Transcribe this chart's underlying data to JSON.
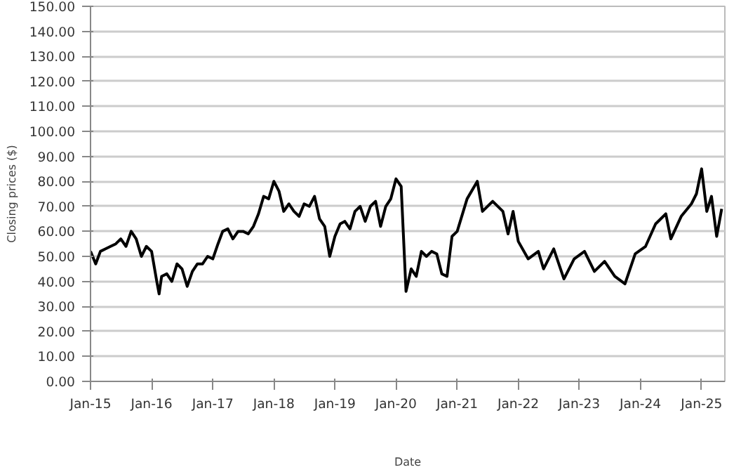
{
  "chart_data": {
    "type": "line",
    "xlabel": "Date",
    "ylabel": "Closing prices ($)",
    "x": [
      "2015-01",
      "2015-02",
      "2015-03",
      "2015-04",
      "2015-05",
      "2015-06",
      "2015-07",
      "2015-08",
      "2015-09",
      "2015-10",
      "2015-11",
      "2015-12",
      "2016-01",
      "2016-02",
      "2016-02-15",
      "2016-03",
      "2016-04",
      "2016-05",
      "2016-06",
      "2016-07",
      "2016-08",
      "2016-09",
      "2016-10",
      "2016-11",
      "2016-12",
      "2017-01",
      "2017-02",
      "2017-03",
      "2017-04",
      "2017-05",
      "2017-06",
      "2017-07",
      "2017-08",
      "2017-09",
      "2017-10",
      "2017-11",
      "2017-12",
      "2018-01",
      "2018-02",
      "2018-03",
      "2018-04",
      "2018-05",
      "2018-06",
      "2018-07",
      "2018-08",
      "2018-09",
      "2018-10",
      "2018-11",
      "2018-12",
      "2019-01",
      "2019-02",
      "2019-03",
      "2019-04",
      "2019-05",
      "2019-06",
      "2019-07",
      "2019-08",
      "2019-09",
      "2019-10",
      "2019-11",
      "2019-12",
      "2020-01",
      "2020-02",
      "2020-03",
      "2020-04",
      "2020-05",
      "2020-06",
      "2020-07",
      "2020-08",
      "2020-09",
      "2020-10",
      "2020-11",
      "2020-12",
      "2021-01",
      "2021-03",
      "2021-05",
      "2021-06",
      "2021-08",
      "2021-10",
      "2021-11",
      "2021-12",
      "2022-01",
      "2022-03",
      "2022-05",
      "2022-06",
      "2022-08",
      "2022-10",
      "2022-12",
      "2023-02",
      "2023-04",
      "2023-06",
      "2023-08",
      "2023-10",
      "2023-12",
      "2024-02",
      "2024-04",
      "2024-06",
      "2024-07",
      "2024-09",
      "2024-11",
      "2024-12",
      "2025-01",
      "2025-02",
      "2025-03",
      "2025-04",
      "2025-05"
    ],
    "series": [
      {
        "color": "#000000",
        "values": [
          52,
          47,
          52,
          53,
          54,
          55,
          57,
          54,
          60,
          57,
          50,
          54,
          52,
          40,
          35,
          42,
          43,
          40,
          47,
          45,
          38,
          44,
          47,
          47,
          50,
          49,
          55,
          60,
          61,
          57,
          60,
          60,
          59,
          62,
          67,
          74,
          73,
          80,
          76,
          68,
          71,
          68,
          66,
          71,
          70,
          74,
          65,
          62,
          50,
          58,
          63,
          64,
          61,
          68,
          70,
          64,
          70,
          72,
          62,
          70,
          73,
          81,
          78,
          36,
          45,
          42,
          52,
          50,
          52,
          51,
          43,
          42,
          58,
          60,
          73,
          80,
          68,
          72,
          68,
          59,
          68,
          56,
          49,
          52,
          45,
          53,
          41,
          49,
          52,
          44,
          48,
          42,
          39,
          51,
          54,
          63,
          67,
          57,
          66,
          71,
          75,
          85,
          68,
          74,
          58,
          69
        ]
      }
    ],
    "xlim": [
      "2015-01-01",
      "2025-05-20"
    ],
    "xticks": [
      {
        "value": "2015-01-01",
        "label": "Jan-15"
      },
      {
        "value": "2016-01-01",
        "label": "Jan-16"
      },
      {
        "value": "2017-01-01",
        "label": "Jan-17"
      },
      {
        "value": "2018-01-01",
        "label": "Jan-18"
      },
      {
        "value": "2019-01-01",
        "label": "Jan-19"
      },
      {
        "value": "2020-01-01",
        "label": "Jan-20"
      },
      {
        "value": "2021-01-01",
        "label": "Jan-21"
      },
      {
        "value": "2022-01-01",
        "label": "Jan-22"
      },
      {
        "value": "2023-01-01",
        "label": "Jan-23"
      },
      {
        "value": "2024-01-01",
        "label": "Jan-24"
      },
      {
        "value": "2025-01-01",
        "label": "Jan-25"
      }
    ],
    "ylim": [
      0,
      150
    ],
    "yticks": [
      {
        "value": 0,
        "label": "0.00"
      },
      {
        "value": 10,
        "label": "10.00"
      },
      {
        "value": 20,
        "label": "20.00"
      },
      {
        "value": 30,
        "label": "30.00"
      },
      {
        "value": 40,
        "label": "40.00"
      },
      {
        "value": 50,
        "label": "50.00"
      },
      {
        "value": 60,
        "label": "60.00"
      },
      {
        "value": 70,
        "label": "70.00"
      },
      {
        "value": 80,
        "label": "80.00"
      },
      {
        "value": 90,
        "label": "90.00"
      },
      {
        "value": 100,
        "label": "100.00"
      },
      {
        "value": 110,
        "label": "110.00"
      },
      {
        "value": 120,
        "label": "120.00"
      },
      {
        "value": 130,
        "label": "130.00"
      },
      {
        "value": 140,
        "label": "140.00"
      },
      {
        "value": 150,
        "label": "150.00"
      }
    ],
    "grid": "y",
    "line_style": "solid"
  }
}
